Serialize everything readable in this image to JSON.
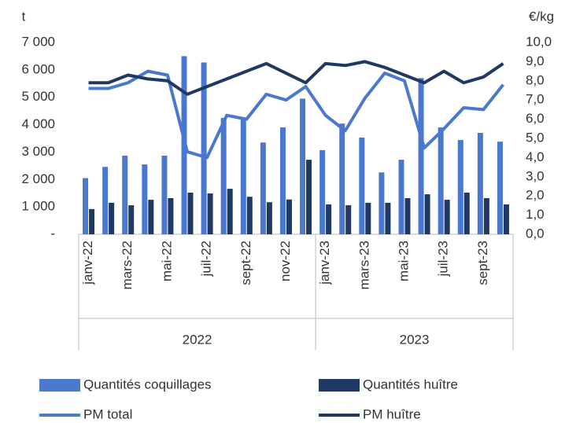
{
  "chart_data": {
    "type": "combo",
    "y_label": "t",
    "y2_label": "€/kg",
    "categories": [
      "janv-22",
      null,
      "mars-22",
      null,
      "mai-22",
      null,
      "juil-22",
      null,
      "sept-22",
      null,
      "nov-22",
      null,
      "janv-23",
      null,
      "mars-23",
      null,
      "mai-23",
      null,
      "juil-23",
      null,
      "sept-23",
      null
    ],
    "groups": [
      {
        "label": "2022",
        "count": 12
      },
      {
        "label": "2023",
        "count": 10
      }
    ],
    "series": [
      {
        "name": "Quantités coquillages",
        "type": "bar",
        "color": "#4a78d0",
        "values": [
          2050,
          2460,
          2870,
          2550,
          2870,
          6500,
          6270,
          4250,
          4200,
          3350,
          3900,
          4950,
          3070,
          4040,
          3530,
          2260,
          2720,
          5700,
          3900,
          3440,
          3700,
          3380
        ]
      },
      {
        "name": "Quantités huître",
        "type": "bar",
        "color": "#1f3864",
        "values": [
          920,
          1150,
          1060,
          1260,
          1320,
          1520,
          1490,
          1660,
          1370,
          1170,
          1270,
          2720,
          1090,
          1060,
          1150,
          1150,
          1320,
          1460,
          1260,
          1520,
          1320,
          1090
        ]
      },
      {
        "name": "PM total",
        "type": "line",
        "axis": "y2",
        "color": "#4a78d0",
        "values": [
          7.6,
          7.6,
          7.9,
          8.5,
          8.3,
          4.3,
          4.0,
          6.2,
          6.0,
          7.3,
          7.0,
          7.7,
          6.2,
          5.4,
          7.1,
          8.4,
          8.0,
          4.5,
          5.5,
          6.6,
          6.5,
          7.8
        ]
      },
      {
        "name": "PM huître",
        "type": "line",
        "axis": "y2",
        "color": "#1f3864",
        "values": [
          7.9,
          7.9,
          8.3,
          8.1,
          8.0,
          7.3,
          7.7,
          8.1,
          8.5,
          8.9,
          8.4,
          7.9,
          8.9,
          8.8,
          9.0,
          8.7,
          8.3,
          7.9,
          8.5,
          7.9,
          8.2,
          8.9
        ]
      }
    ],
    "ylim": [
      0,
      7000
    ],
    "yticks": [
      {
        "value": 0,
        "label": "-"
      },
      {
        "value": 1000,
        "label": "1 000"
      },
      {
        "value": 2000,
        "label": "2 000"
      },
      {
        "value": 3000,
        "label": "3 000"
      },
      {
        "value": 4000,
        "label": "4 000"
      },
      {
        "value": 5000,
        "label": "5 000"
      },
      {
        "value": 6000,
        "label": "6 000"
      },
      {
        "value": 7000,
        "label": "7 000"
      }
    ],
    "y2lim": [
      0,
      10
    ],
    "y2ticks": [
      {
        "value": 0,
        "label": "0,0"
      },
      {
        "value": 1,
        "label": "1,0"
      },
      {
        "value": 2,
        "label": "2,0"
      },
      {
        "value": 3,
        "label": "3,0"
      },
      {
        "value": 4,
        "label": "4,0"
      },
      {
        "value": 5,
        "label": "5,0"
      },
      {
        "value": 6,
        "label": "6,0"
      },
      {
        "value": 7,
        "label": "7,0"
      },
      {
        "value": 8,
        "label": "8,0"
      },
      {
        "value": 9,
        "label": "9,0"
      },
      {
        "value": 10,
        "label": "10,0"
      }
    ],
    "legend": "bottom"
  }
}
